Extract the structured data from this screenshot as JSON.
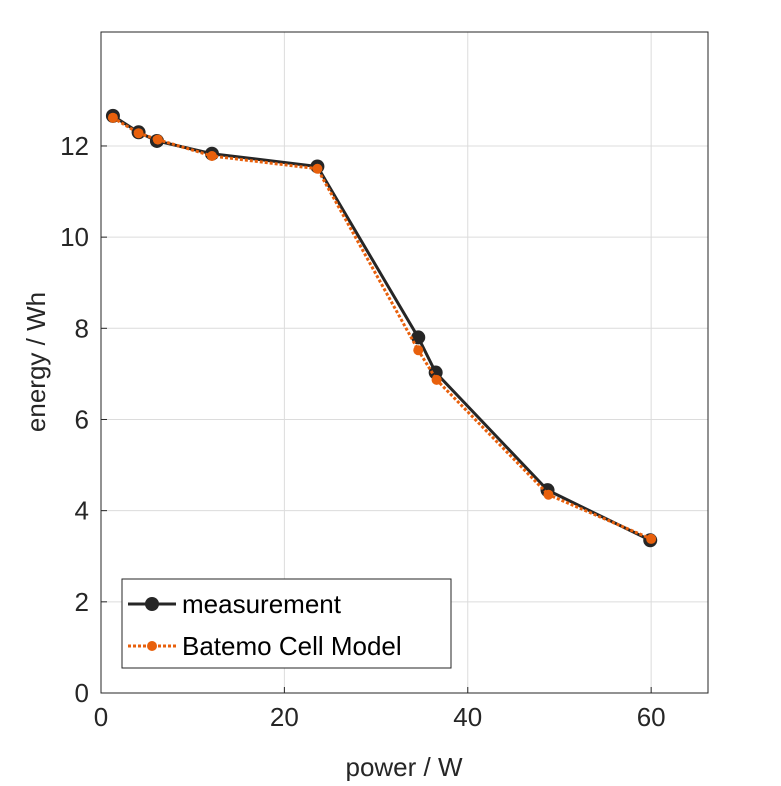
{
  "chart_data": {
    "type": "line",
    "title": "",
    "xlabel": "power / W",
    "ylabel": "energy / Wh",
    "xlim": [
      0,
      66.2
    ],
    "ylim": [
      0,
      14.5
    ],
    "xticks": [
      0,
      20,
      40,
      60
    ],
    "yticks": [
      0,
      2,
      4,
      6,
      8,
      10,
      12
    ],
    "grid": true,
    "legend_placement": "bottom-left",
    "series": [
      {
        "name": "measurement",
        "color": "#262626",
        "style": "solid",
        "x": [
          1.3,
          4.1,
          6.1,
          12.1,
          23.6,
          34.6,
          36.5,
          48.7,
          59.9
        ],
        "y": [
          12.66,
          12.3,
          12.11,
          11.83,
          11.55,
          7.8,
          7.03,
          4.45,
          3.35
        ]
      },
      {
        "name": "Batemo Cell Model",
        "color": "#E8600C",
        "style": "dotted",
        "x": [
          1.3,
          4.1,
          6.2,
          12.1,
          23.6,
          34.6,
          36.6,
          48.8,
          60.0
        ],
        "y": [
          12.62,
          12.28,
          12.14,
          11.78,
          11.5,
          7.52,
          6.87,
          4.35,
          3.38
        ]
      }
    ]
  }
}
